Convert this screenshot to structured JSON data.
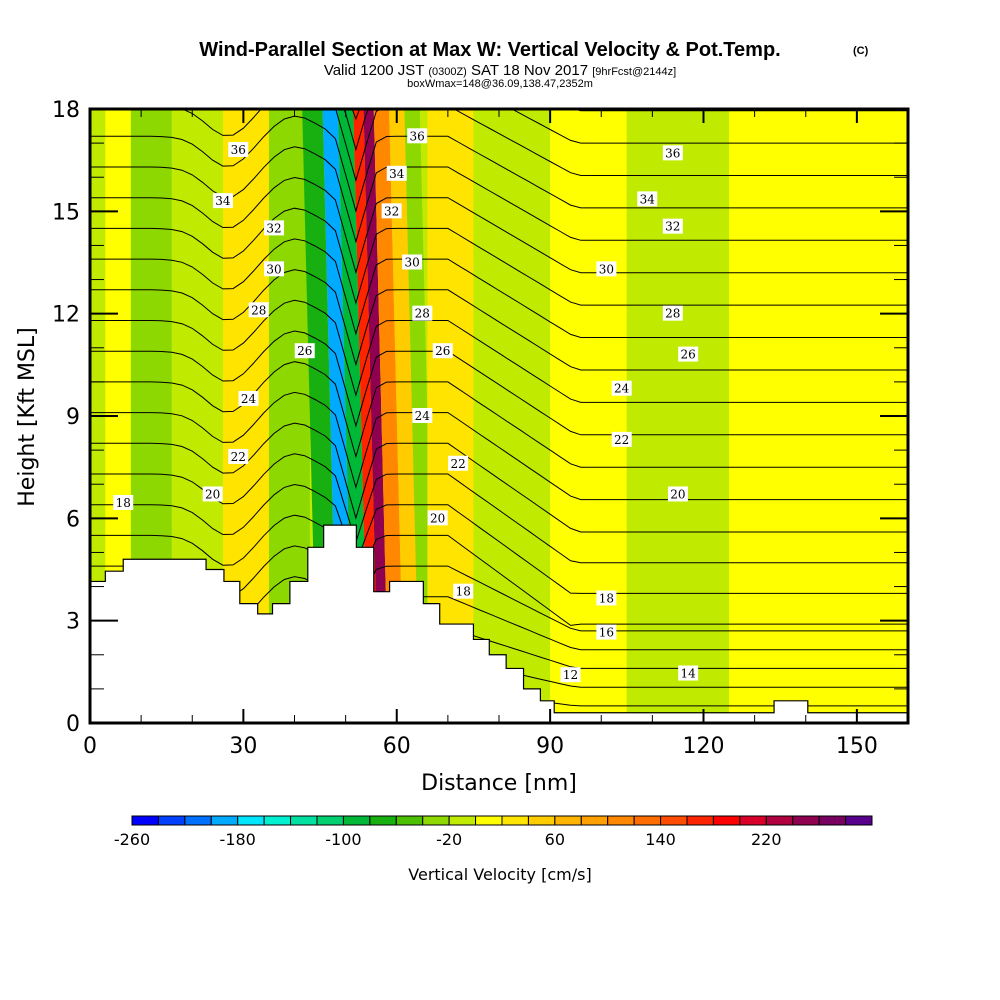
{
  "header": {
    "title": "Wind-Parallel Section at Max W: Vertical Velocity & Pot.Temp.",
    "copyright": "(C)",
    "valid_prefix": "Valid 1200 JST",
    "valid_utc": "(0300Z)",
    "valid_date": "SAT 18 Nov 2017",
    "forecast": "[9hrFcst@2144z]",
    "box_info": "boxWmax=148@36.09,138.47,2352m"
  },
  "chart_data": {
    "type": "heatmap",
    "title": "Wind-Parallel Section at Max W: Vertical Velocity & Pot.Temp.",
    "xlabel": "Distance [nm]",
    "ylabel": "Height [Kft MSL]",
    "xlim": [
      0,
      160
    ],
    "ylim": [
      0,
      18
    ],
    "xticks": [
      0,
      30,
      60,
      90,
      120,
      150
    ],
    "yticks": [
      0,
      3,
      6,
      9,
      12,
      15,
      18
    ],
    "colorbar": {
      "label": "Vertical Velocity [cm/s]",
      "range": [
        -260,
        300
      ],
      "step": 20,
      "tick_labels": [
        "-260",
        "-180",
        "-100",
        "-20",
        "60",
        "140",
        "220"
      ],
      "tick_values": [
        -260,
        -180,
        -100,
        -20,
        60,
        140,
        220
      ],
      "colors": [
        "#0000ff",
        "#0040ff",
        "#0070ff",
        "#00aaff",
        "#00e6ff",
        "#00f0d2",
        "#00e0a0",
        "#00d070",
        "#00b838",
        "#18b010",
        "#4cc000",
        "#8cd800",
        "#c0ea00",
        "#ffff00",
        "#ffe400",
        "#ffcc00",
        "#ffb400",
        "#ffa000",
        "#ff8800",
        "#ff6c00",
        "#ff4c00",
        "#ff2400",
        "#ff0000",
        "#d80028",
        "#b00040",
        "#900050",
        "#780060",
        "#58008c"
      ]
    },
    "velocity_bands": [
      {
        "x_range": [
          0,
          3
        ],
        "value": -10
      },
      {
        "x_range": [
          3,
          8
        ],
        "value": 10
      },
      {
        "x_range": [
          8,
          16
        ],
        "value": -30
      },
      {
        "x_range": [
          16,
          26
        ],
        "value": -10
      },
      {
        "x_range": [
          26,
          35
        ],
        "value": 30
      },
      {
        "x_range": [
          35,
          43
        ],
        "value": -30
      },
      {
        "x_range": [
          43,
          47
        ],
        "value": -70
      },
      {
        "x_range": [
          47,
          50
        ],
        "value": -190
      },
      {
        "x_range": [
          50,
          53
        ],
        "value": -90
      },
      {
        "x_range": [
          53,
          55
        ],
        "value": 170
      },
      {
        "x_range": [
          55,
          57
        ],
        "value": 250
      },
      {
        "x_range": [
          57,
          60
        ],
        "value": 110
      },
      {
        "x_range": [
          60,
          63
        ],
        "value": 50
      },
      {
        "x_range": [
          63,
          66
        ],
        "value": -30
      },
      {
        "x_range": [
          66,
          75
        ],
        "value": 30
      },
      {
        "x_range": [
          75,
          90
        ],
        "value": -10
      },
      {
        "x_range": [
          90,
          105
        ],
        "value": 10
      },
      {
        "x_range": [
          105,
          125
        ],
        "value": -10
      },
      {
        "x_range": [
          125,
          160
        ],
        "value": 10
      }
    ],
    "terrain_kft": [
      [
        0,
        4.15
      ],
      [
        3,
        4.15
      ],
      [
        3,
        4.45
      ],
      [
        6.5,
        4.45
      ],
      [
        6.5,
        4.8
      ],
      [
        22.7,
        4.8
      ],
      [
        22.7,
        4.5
      ],
      [
        26.2,
        4.5
      ],
      [
        26.2,
        4.15
      ],
      [
        29.3,
        4.15
      ],
      [
        29.3,
        3.5
      ],
      [
        32.8,
        3.5
      ],
      [
        32.8,
        3.2
      ],
      [
        35.7,
        3.2
      ],
      [
        35.7,
        3.5
      ],
      [
        39.1,
        3.5
      ],
      [
        39.1,
        4.15
      ],
      [
        42.6,
        4.15
      ],
      [
        42.6,
        5.15
      ],
      [
        45.7,
        5.15
      ],
      [
        45.7,
        5.8
      ],
      [
        52.1,
        5.8
      ],
      [
        52.1,
        5.15
      ],
      [
        55.5,
        5.15
      ],
      [
        55.5,
        3.85
      ],
      [
        58.6,
        3.85
      ],
      [
        58.6,
        4.15
      ],
      [
        65.2,
        4.15
      ],
      [
        65.2,
        3.5
      ],
      [
        68.4,
        3.5
      ],
      [
        68.4,
        2.9
      ],
      [
        75,
        2.9
      ],
      [
        75,
        2.45
      ],
      [
        78.1,
        2.45
      ],
      [
        78.1,
        2.0
      ],
      [
        81.4,
        2.0
      ],
      [
        81.4,
        1.6
      ],
      [
        84.8,
        1.6
      ],
      [
        84.8,
        1.0
      ],
      [
        88.1,
        1.0
      ],
      [
        88.1,
        0.65
      ],
      [
        90.8,
        0.65
      ],
      [
        90.8,
        0.3
      ],
      [
        133.8,
        0.3
      ],
      [
        133.8,
        0.65
      ],
      [
        140.4,
        0.65
      ],
      [
        140.4,
        0.3
      ],
      [
        160,
        0.3
      ]
    ],
    "isentropes": [
      {
        "theta": 12,
        "label": "12"
      },
      {
        "theta": 14,
        "label": "14"
      },
      {
        "theta": 16,
        "label": "16"
      },
      {
        "theta": 18,
        "label": "18"
      },
      {
        "theta": 20,
        "label": "20"
      },
      {
        "theta": 22,
        "label": "22"
      },
      {
        "theta": 24,
        "label": "24"
      },
      {
        "theta": 26,
        "label": "26"
      },
      {
        "theta": 28,
        "label": "28"
      },
      {
        "theta": 30,
        "label": "30"
      },
      {
        "theta": 32,
        "label": "32"
      },
      {
        "theta": 34,
        "label": "34"
      },
      {
        "theta": 36,
        "label": "36"
      }
    ],
    "contour_labels": [
      {
        "text": "36",
        "x": 29,
        "y": 16.8
      },
      {
        "text": "34",
        "x": 26,
        "y": 15.3
      },
      {
        "text": "32",
        "x": 36,
        "y": 14.5
      },
      {
        "text": "30",
        "x": 36,
        "y": 13.3
      },
      {
        "text": "28",
        "x": 33,
        "y": 12.1
      },
      {
        "text": "26",
        "x": 42,
        "y": 10.9
      },
      {
        "text": "24",
        "x": 31,
        "y": 9.5
      },
      {
        "text": "22",
        "x": 29,
        "y": 7.8
      },
      {
        "text": "20",
        "x": 24,
        "y": 6.7
      },
      {
        "text": "18",
        "x": 6.5,
        "y": 6.45
      },
      {
        "text": "36",
        "x": 64,
        "y": 17.2
      },
      {
        "text": "34",
        "x": 60,
        "y": 16.1
      },
      {
        "text": "32",
        "x": 59,
        "y": 15.0
      },
      {
        "text": "30",
        "x": 63,
        "y": 13.5
      },
      {
        "text": "28",
        "x": 65,
        "y": 12.0
      },
      {
        "text": "26",
        "x": 69,
        "y": 10.9
      },
      {
        "text": "24",
        "x": 65,
        "y": 9.0
      },
      {
        "text": "22",
        "x": 72,
        "y": 7.6
      },
      {
        "text": "20",
        "x": 68,
        "y": 6.0
      },
      {
        "text": "18",
        "x": 73,
        "y": 3.85
      },
      {
        "text": "36",
        "x": 114,
        "y": 16.7
      },
      {
        "text": "34",
        "x": 109,
        "y": 15.35
      },
      {
        "text": "32",
        "x": 114,
        "y": 14.55
      },
      {
        "text": "30",
        "x": 101,
        "y": 13.3
      },
      {
        "text": "28",
        "x": 114,
        "y": 12.0
      },
      {
        "text": "26",
        "x": 117,
        "y": 10.8
      },
      {
        "text": "24",
        "x": 104,
        "y": 9.8
      },
      {
        "text": "22",
        "x": 104,
        "y": 8.3
      },
      {
        "text": "20",
        "x": 115,
        "y": 6.7
      },
      {
        "text": "18",
        "x": 101,
        "y": 3.65
      },
      {
        "text": "16",
        "x": 101,
        "y": 2.65
      },
      {
        "text": "12",
        "x": 94,
        "y": 1.4
      },
      {
        "text": "14",
        "x": 117,
        "y": 1.45
      }
    ]
  }
}
